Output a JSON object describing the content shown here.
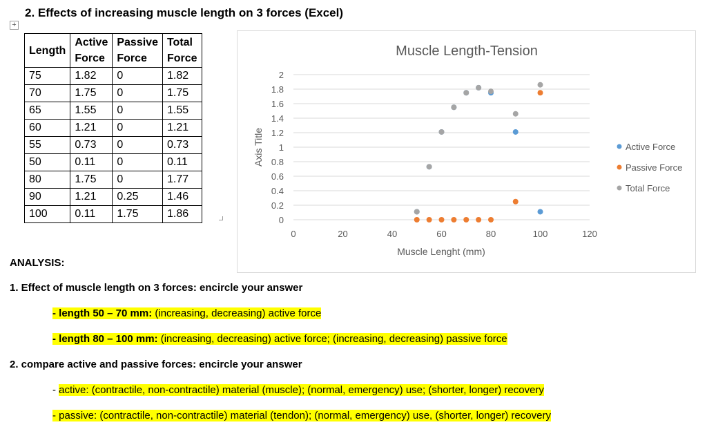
{
  "heading": "2. Effects of increasing muscle length on 3 forces (Excel)",
  "move_handle_icon": "move-cross",
  "table": {
    "headers": [
      "Length",
      "Active Force",
      "Passive Force",
      "Total Force"
    ],
    "header_lines": [
      [
        "Length"
      ],
      [
        "Active",
        "Force"
      ],
      [
        "Passive",
        "Force"
      ],
      [
        "Total",
        "Force"
      ]
    ],
    "rows": [
      [
        "75",
        "1.82",
        "0",
        "1.82"
      ],
      [
        "70",
        "1.75",
        "0",
        "1.75"
      ],
      [
        "65",
        "1.55",
        "0",
        "1.55"
      ],
      [
        "60",
        "1.21",
        "0",
        "1.21"
      ],
      [
        "55",
        "0.73",
        "0",
        "0.73"
      ],
      [
        "50",
        "0.11",
        "0",
        "0.11"
      ],
      [
        "80",
        "1.75",
        "0",
        "1.77"
      ],
      [
        "90",
        "1.21",
        "0.25",
        "1.46"
      ],
      [
        "100",
        "0.11",
        "1.75",
        "1.86"
      ]
    ]
  },
  "chart_data": {
    "type": "scatter",
    "title": "Muscle Length-Tension",
    "xlabel": "Muscle Lenght (mm)",
    "ylabel": "Axis Title",
    "xlim": [
      0,
      120
    ],
    "ylim": [
      0,
      2
    ],
    "x_ticks": [
      "0",
      "20",
      "40",
      "60",
      "80",
      "100",
      "120"
    ],
    "y_ticks": [
      "0",
      "0.2",
      "0.4",
      "0.6",
      "0.8",
      "1",
      "1.2",
      "1.4",
      "1.6",
      "1.8",
      "2"
    ],
    "legend_position": "right",
    "grid": true,
    "series": [
      {
        "name": "Active Force",
        "color": "#5b9bd5",
        "x": [
          75,
          70,
          65,
          60,
          55,
          50,
          80,
          90,
          100
        ],
        "y": [
          1.82,
          1.75,
          1.55,
          1.21,
          0.73,
          0.11,
          1.75,
          1.21,
          0.11
        ]
      },
      {
        "name": "Passive Force",
        "color": "#ed7d31",
        "x": [
          75,
          70,
          65,
          60,
          55,
          50,
          80,
          90,
          100
        ],
        "y": [
          0,
          0,
          0,
          0,
          0,
          0,
          0,
          0.25,
          1.75
        ]
      },
      {
        "name": "Total Force",
        "color": "#a5a5a5",
        "x": [
          75,
          70,
          65,
          60,
          55,
          50,
          80,
          90,
          100
        ],
        "y": [
          1.82,
          1.75,
          1.55,
          1.21,
          0.73,
          0.11,
          1.77,
          1.46,
          1.86
        ]
      }
    ]
  },
  "analysis": {
    "title": "ANALYSIS:",
    "q1": "1. Effect of muscle length on 3 forces: encircle your answer",
    "q1_line1_bold": "- length 50 – 70 mm:",
    "q1_line1_rest": " (increasing, decreasing) active force",
    "q1_line2_bold": "- length 80 – 100 mm:",
    "q1_line2_rest": " (increasing, decreasing) active force; (increasing, decreasing) passive force",
    "q2": "2. compare active and passive forces: encircle your answer",
    "q2_line1_prefix": "- ",
    "q2_line1": "active: (contractile, non-contractile) material (muscle); (normal, emergency) use; (shorter, longer) recovery",
    "q2_line2": "- passive: (contractile, non-contractile) material (tendon); (normal, emergency) use, (shorter, longer) recovery"
  }
}
